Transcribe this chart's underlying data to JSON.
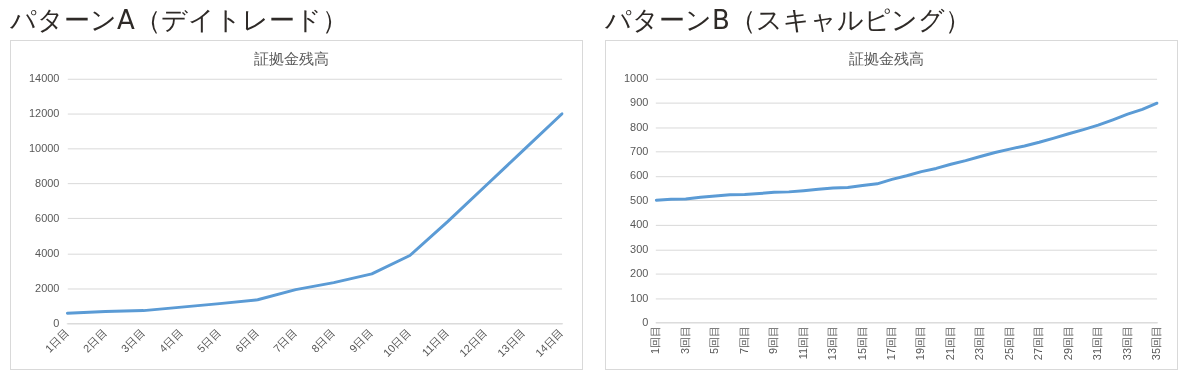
{
  "chart_data": [
    {
      "type": "line",
      "title": "証拠金残高",
      "annotations": [
        "パターンA（デイトレード）"
      ],
      "categories": [
        "1日目",
        "2日目",
        "3日目",
        "4日目",
        "5日目",
        "6日目",
        "7日目",
        "8日目",
        "9日目",
        "10日目",
        "11日目",
        "12日目",
        "13日目",
        "14日目"
      ],
      "series": [
        {
          "color": "#5b9bd5",
          "values": [
            600,
            700,
            750,
            950,
            1150,
            1370,
            1950,
            2350,
            2850,
            3900,
            5850,
            7900,
            9950,
            12000
          ]
        }
      ],
      "ylim": [
        0,
        14000
      ],
      "yticks": [
        0,
        2000,
        4000,
        6000,
        8000,
        10000,
        12000,
        14000
      ],
      "grid": "y",
      "legend": false,
      "marker": "none",
      "line_style": "solid"
    },
    {
      "type": "line",
      "title": "証拠金残高",
      "annotations": [
        "パターンB（スキャルピング）"
      ],
      "categories": [
        "1回目",
        null,
        "3回目",
        null,
        "5回目",
        null,
        "7回目",
        null,
        "9回目",
        null,
        "11回目",
        null,
        "13回目",
        null,
        "15回目",
        null,
        "17回目",
        null,
        "19回目",
        null,
        "21回目",
        null,
        "23回目",
        null,
        "25回目",
        null,
        "27回目",
        null,
        "29回目",
        null,
        "31回目",
        null,
        "33回目",
        null,
        "35回目"
      ],
      "series": [
        {
          "color": "#5b9bd5",
          "values": [
            503,
            507,
            508,
            515,
            520,
            525,
            526,
            530,
            535,
            537,
            542,
            548,
            553,
            555,
            563,
            570,
            588,
            603,
            620,
            633,
            650,
            665,
            682,
            698,
            712,
            725,
            740,
            757,
            775,
            792,
            810,
            832,
            855,
            875,
            900
          ]
        }
      ],
      "ylim": [
        0,
        1000
      ],
      "yticks": [
        0,
        100,
        200,
        300,
        400,
        500,
        600,
        700,
        800,
        900,
        1000
      ],
      "grid": "y",
      "legend": false,
      "marker": "none",
      "line_style": "solid"
    }
  ]
}
